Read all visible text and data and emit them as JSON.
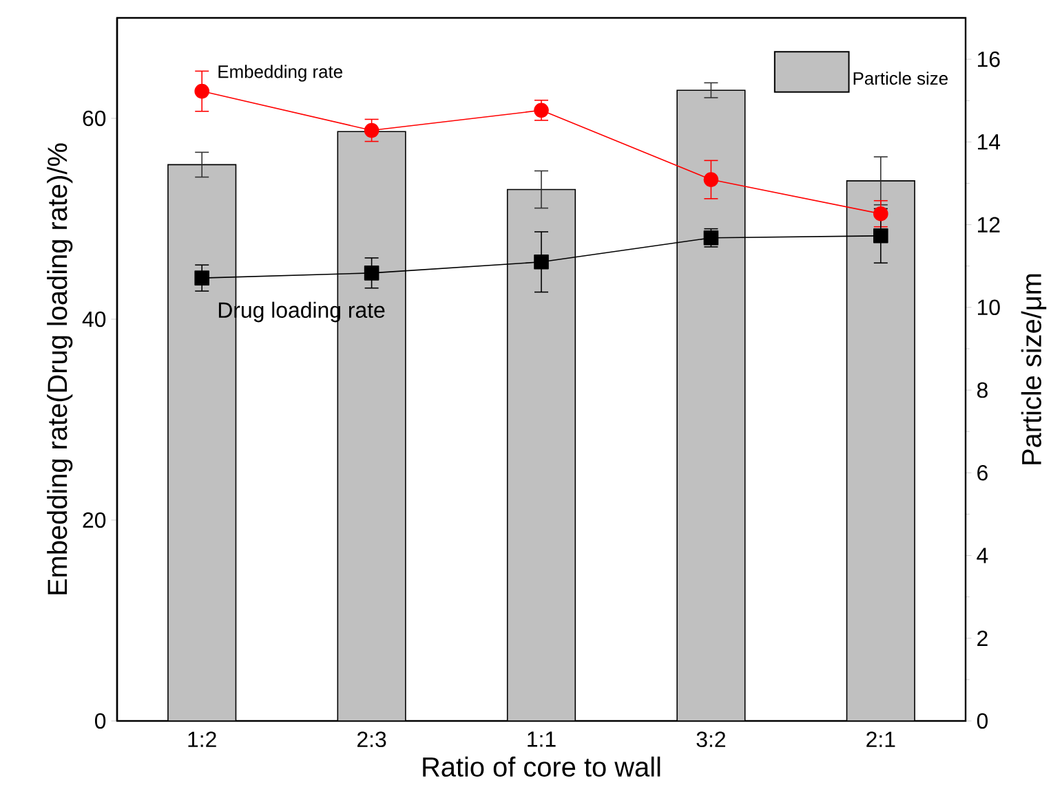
{
  "chart_data": {
    "type": "bar",
    "xlabel": "Ratio of core to wall",
    "ylabel": "Embedding rate(Drug loading rate)/%",
    "y2label": "Particle size/μm",
    "categories": [
      "1:2",
      "2:3",
      "1:1",
      "3:2",
      "2:1"
    ],
    "ylim": [
      0,
      70
    ],
    "yticks": [
      0,
      20,
      40,
      60
    ],
    "y2lim": [
      0,
      17
    ],
    "y2ticks": [
      0,
      2,
      4,
      6,
      8,
      10,
      12,
      14,
      16
    ],
    "legend": "top right",
    "series": [
      {
        "name": "Particle size",
        "axis": "y2",
        "color": "#c0c0c0",
        "values": [
          13.45,
          14.25,
          12.85,
          15.25,
          13.06
        ],
        "errors": [
          0.3,
          null,
          0.45,
          0.18,
          0.58
        ]
      },
      {
        "name": "Embedding rate",
        "type": "line",
        "color": "#ff0000",
        "marker": "circle",
        "values": [
          62.7,
          58.8,
          60.8,
          53.9,
          50.5
        ],
        "errors": [
          2.0,
          1.1,
          1.0,
          1.9,
          1.3
        ]
      },
      {
        "name": "Drug loading rate",
        "type": "line",
        "color": "#000000",
        "marker": "square",
        "values": [
          44.1,
          44.6,
          45.7,
          48.1,
          48.3
        ],
        "errors": [
          1.3,
          1.5,
          3.0,
          0.9,
          2.7
        ]
      }
    ]
  }
}
